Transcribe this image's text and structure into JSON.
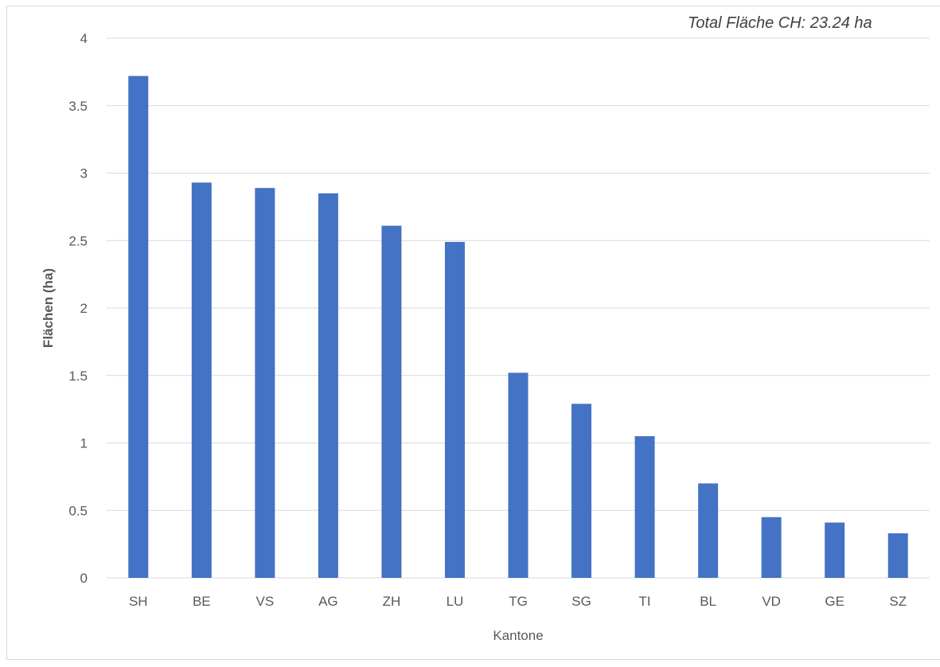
{
  "chart_data": {
    "type": "bar",
    "title": "",
    "annotation": "Total Fläche CH: 23.24 ha",
    "xlabel": "Kantone",
    "ylabel": "Flächen (ha)",
    "categories": [
      "SH",
      "BE",
      "VS",
      "AG",
      "ZH",
      "LU",
      "TG",
      "SG",
      "TI",
      "BL",
      "VD",
      "GE",
      "SZ"
    ],
    "values": [
      3.72,
      2.93,
      2.89,
      2.85,
      2.61,
      2.49,
      1.52,
      1.29,
      1.05,
      0.7,
      0.45,
      0.41,
      0.33
    ],
    "ylim": [
      0,
      4
    ],
    "yticks": [
      0,
      0.5,
      1,
      1.5,
      2,
      2.5,
      3,
      3.5,
      4
    ],
    "ytick_labels": [
      "0",
      "0.5",
      "1",
      "1.5",
      "2",
      "2.5",
      "3",
      "3.5",
      "4"
    ],
    "grid": "horizontal",
    "legend": "none",
    "colors": {
      "bar": "#4472c4",
      "grid": "#d9d9d9",
      "axis": "#d9d9d9",
      "text": "#595959"
    }
  }
}
